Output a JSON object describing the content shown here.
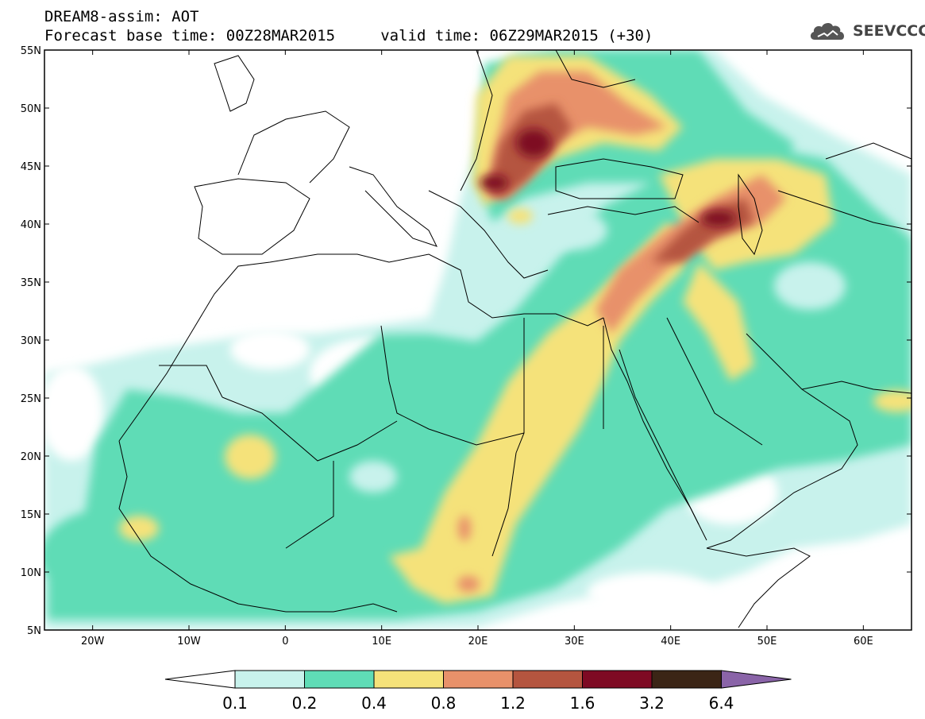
{
  "header": {
    "title_line1": "DREAM8-assim: AOT",
    "title_line2": "Forecast base time: 00Z28MAR2015     valid time: 06Z29MAR2015 (+30)",
    "logo_text": "SEEVCCC",
    "logo_icon": "cloud-icon"
  },
  "map": {
    "lat_labels": [
      "55N",
      "50N",
      "45N",
      "40N",
      "35N",
      "30N",
      "25N",
      "20N",
      "15N",
      "10N",
      "5N"
    ],
    "lon_labels": [
      "20W",
      "10W",
      "0",
      "10E",
      "20E",
      "30E",
      "40E",
      "50E",
      "60E"
    ],
    "lat_range": [
      5,
      55
    ],
    "lon_range": [
      -25,
      65
    ]
  },
  "colorbar": {
    "labels": [
      "0.1",
      "0.2",
      "0.4",
      "0.8",
      "1.2",
      "1.6",
      "3.2",
      "6.4"
    ],
    "colors": [
      "#ffffff",
      "#c8f2ec",
      "#5fdcb6",
      "#f5e27a",
      "#e8916a",
      "#b5553f",
      "#7e0a23",
      "#3b2516",
      "#8a64a8"
    ]
  }
}
